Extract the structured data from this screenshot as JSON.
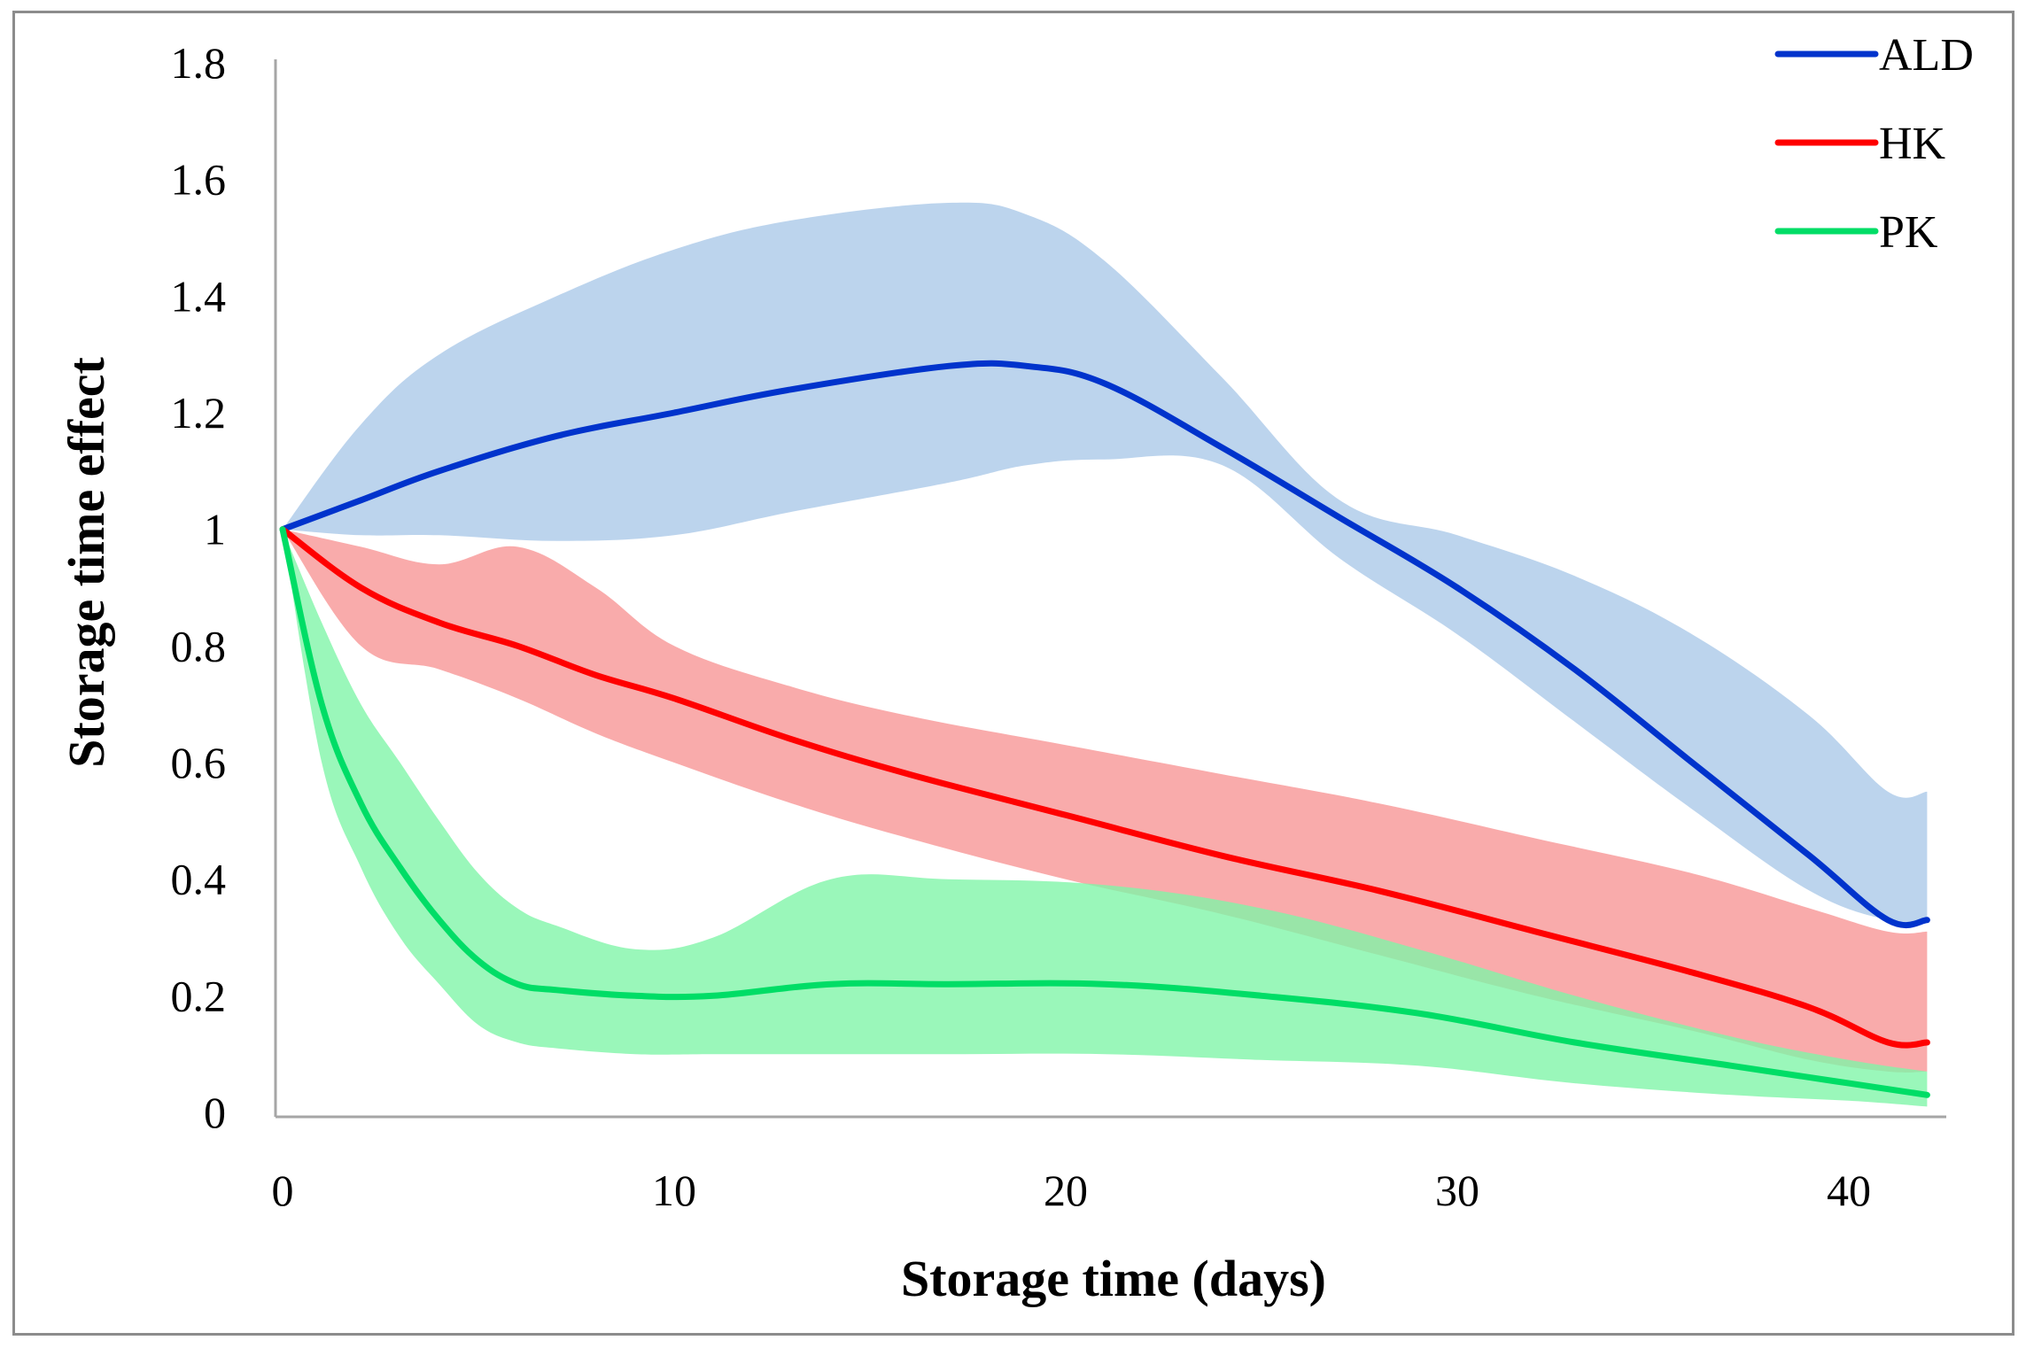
{
  "chart_data": {
    "type": "line",
    "title": "",
    "xlabel": "Storage time (days)",
    "ylabel": "Storage time effect",
    "xlim": [
      0,
      42
    ],
    "ylim": [
      0,
      1.8
    ],
    "x_ticks": [
      0,
      10,
      20,
      30,
      40
    ],
    "y_ticks": [
      0,
      0.2,
      0.4,
      0.6,
      0.8,
      1,
      1.2,
      1.4,
      1.6,
      1.8
    ],
    "y_tick_labels": [
      "0",
      "0.2",
      "0.4",
      "0.6",
      "0.8",
      "1",
      "1.2",
      "1.4",
      "1.6",
      "1.8"
    ],
    "x_tick_labels": [
      "0",
      "10",
      "20",
      "30",
      "40"
    ],
    "grid": false,
    "legend_position": "top-right",
    "series": [
      {
        "name": "ALD",
        "color": "#0033cc",
        "band_color": "#a9c8e8",
        "x": [
          0,
          2,
          4,
          7,
          10,
          13,
          17,
          19,
          21,
          24,
          27,
          30,
          33,
          36,
          39,
          41,
          42
        ],
        "values": [
          1.0,
          1.05,
          1.1,
          1.16,
          1.2,
          1.24,
          1.28,
          1.28,
          1.25,
          1.14,
          1.02,
          0.9,
          0.76,
          0.6,
          0.44,
          0.33,
          0.33
        ],
        "upper": [
          1.0,
          1.18,
          1.3,
          1.4,
          1.48,
          1.53,
          1.56,
          1.54,
          1.46,
          1.26,
          1.05,
          0.99,
          0.92,
          0.82,
          0.68,
          0.55,
          0.55
        ],
        "lower": [
          1.0,
          0.99,
          0.99,
          0.98,
          0.99,
          1.03,
          1.08,
          1.11,
          1.12,
          1.11,
          0.95,
          0.82,
          0.67,
          0.52,
          0.38,
          0.33,
          0.33
        ]
      },
      {
        "name": "HK",
        "color": "#ff0000",
        "band_color": "#f79393",
        "x": [
          0,
          2,
          4,
          6,
          8,
          10,
          13,
          16,
          20,
          24,
          28,
          32,
          36,
          39,
          41,
          42
        ],
        "values": [
          1.0,
          0.9,
          0.84,
          0.8,
          0.75,
          0.71,
          0.64,
          0.58,
          0.51,
          0.44,
          0.38,
          0.31,
          0.24,
          0.18,
          0.12,
          0.12
        ],
        "upper": [
          1.0,
          0.97,
          0.94,
          0.97,
          0.9,
          0.8,
          0.73,
          0.68,
          0.63,
          0.58,
          0.53,
          0.47,
          0.41,
          0.35,
          0.31,
          0.31
        ],
        "lower": [
          1.0,
          0.8,
          0.76,
          0.71,
          0.65,
          0.6,
          0.53,
          0.47,
          0.4,
          0.34,
          0.27,
          0.2,
          0.14,
          0.09,
          0.07,
          0.07
        ]
      },
      {
        "name": "PK",
        "color": "#00dd66",
        "band_color": "#7df5a6",
        "x": [
          0,
          1,
          2,
          3,
          4,
          5,
          6,
          7,
          9,
          11,
          14,
          17,
          21,
          25,
          29,
          33,
          37,
          40,
          42
        ],
        "values": [
          1.0,
          0.7,
          0.53,
          0.42,
          0.33,
          0.26,
          0.22,
          0.21,
          0.2,
          0.2,
          0.22,
          0.22,
          0.22,
          0.2,
          0.17,
          0.12,
          0.08,
          0.05,
          0.03
        ],
        "upper": [
          1.0,
          0.84,
          0.7,
          0.6,
          0.5,
          0.41,
          0.35,
          0.32,
          0.28,
          0.3,
          0.4,
          0.4,
          0.39,
          0.35,
          0.28,
          0.2,
          0.13,
          0.09,
          0.07
        ],
        "lower": [
          1.0,
          0.6,
          0.42,
          0.3,
          0.22,
          0.15,
          0.12,
          0.11,
          0.1,
          0.1,
          0.1,
          0.1,
          0.1,
          0.09,
          0.08,
          0.05,
          0.03,
          0.02,
          0.01
        ]
      }
    ]
  }
}
